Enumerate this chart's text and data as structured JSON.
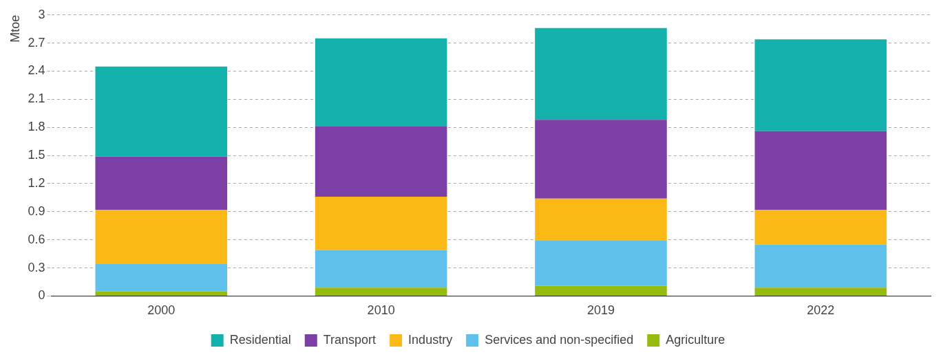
{
  "chart_data": {
    "type": "bar",
    "stacked": true,
    "ylabel": "Mtoe",
    "categories": [
      "2000",
      "2010",
      "2019",
      "2022"
    ],
    "ylim": [
      0,
      3
    ],
    "yticks": [
      0,
      0.3,
      0.6,
      0.9,
      1.2,
      1.5,
      1.8,
      2.1,
      2.4,
      2.7,
      3
    ],
    "grid": "y",
    "legend": "bottom",
    "series": [
      {
        "name": "Agriculture",
        "color": "#95bb0f",
        "values": [
          0.05,
          0.09,
          0.11,
          0.09
        ]
      },
      {
        "name": "Services and non-specified",
        "color": "#60c0ec",
        "values": [
          0.29,
          0.4,
          0.48,
          0.46
        ]
      },
      {
        "name": "Industry",
        "color": "#fbb917",
        "values": [
          0.58,
          0.57,
          0.45,
          0.37
        ]
      },
      {
        "name": "Transport",
        "color": "#7b3fa5",
        "values": [
          0.57,
          0.75,
          0.84,
          0.84
        ]
      },
      {
        "name": "Residential",
        "color": "#13b0ac",
        "values": [
          0.96,
          0.94,
          0.98,
          0.98
        ]
      }
    ]
  }
}
